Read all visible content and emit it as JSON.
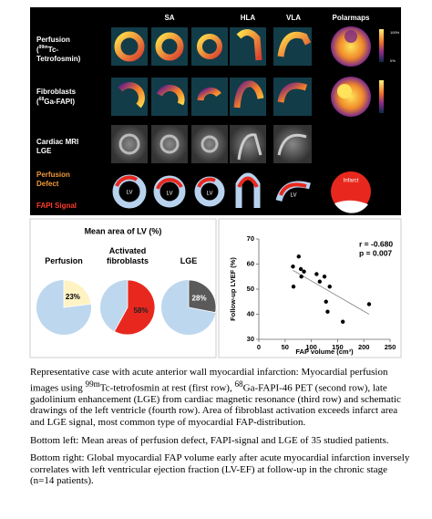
{
  "figure": {
    "columns": [
      "SA",
      "HLA",
      "VLA",
      "Polarmaps"
    ],
    "perfusion": {
      "title": "Perfusion",
      "open": "(",
      "sup": "99m",
      "iso": "Tc-",
      "end": "Tetrofosmin)"
    },
    "fibroblasts": {
      "title": "Fibroblasts",
      "open": "(",
      "sup": "68",
      "iso": "Ga-FAPI)"
    },
    "mri": [
      "Cardiac MRI",
      "LGE"
    ],
    "defect": [
      "Perfusion",
      "Defect"
    ],
    "fapi": "FAPI Signal",
    "lv": "LV",
    "infarct": "Infarct",
    "colorbar_max": "100%",
    "colorbar_min": "0%"
  },
  "chart_data": [
    {
      "type": "pie",
      "title": "Mean area of LV (%)",
      "categories": [
        "Perfusion",
        "Activated fibroblasts",
        "LGE"
      ],
      "values": [
        23,
        58,
        28
      ],
      "value_labels": [
        "23%",
        "58%",
        "28%"
      ],
      "colors": [
        "#fff3c4",
        "#e8281e",
        "#5a5a5a"
      ],
      "label_colors": [
        "#000000",
        "#222222",
        "#ffffff"
      ],
      "rest_color": "#bdd7ee"
    },
    {
      "type": "scatter",
      "xlabel": "FAP volume (cm³)",
      "ylabel": "Follow-up LVEF (%)",
      "x": [
        65,
        66,
        76,
        80,
        81,
        86,
        110,
        116,
        125,
        128,
        131,
        135,
        160,
        210
      ],
      "y": [
        59,
        51,
        63,
        58,
        55,
        57,
        56,
        53,
        55,
        45,
        41,
        51,
        37,
        44
      ],
      "xlim": [
        0,
        250
      ],
      "ylim": [
        30,
        70
      ],
      "xticks": [
        0,
        50,
        100,
        150,
        200,
        250
      ],
      "yticks": [
        30,
        40,
        50,
        60,
        70
      ],
      "annotations": [
        "r = -0.680",
        "p = 0.007"
      ],
      "color": "#000000",
      "trend": {
        "x": [
          65,
          210
        ],
        "y": [
          57.5,
          40
        ]
      },
      "trend_color": "#8c8c8c"
    }
  ],
  "caption": [
    [
      "Representative case with acute anterior wall myocardial infarction: Myocardial perfusion images using ",
      "99m",
      "Tc-tetrofosmin at rest (first row), ",
      "68",
      "Ga-FAPI-46 PET (second row), late gadolinium enhancement (LGE) from cardiac magnetic resonance (third row) and schematic drawings of the left ventricle (fourth row). Area of fibroblast activation exceeds infarct area and LGE signal, most common type of myocardial FAP-distribution."
    ],
    [
      "Bottom left: Mean areas of perfusion defect, FAPI-signal and LGE of 35 studied patients."
    ],
    [
      "Bottom right: Global myocardial FAP volume early after acute myocardial infarction inversely correlates with left ventricular ejection fraction (LV-EF) at follow-up in the chronic stage (n=14 patients)."
    ]
  ]
}
